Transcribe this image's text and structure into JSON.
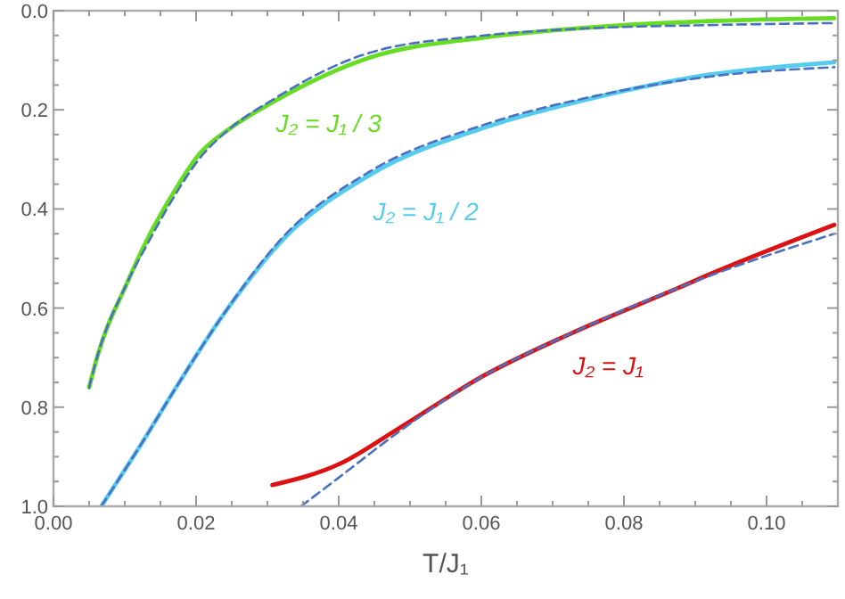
{
  "chart_data": {
    "type": "line",
    "xlabel": "T/J₁",
    "xlim": [
      0,
      0.11
    ],
    "ylim": [
      1,
      0
    ],
    "xticks": [
      {
        "value": 0,
        "label": "0.00"
      },
      {
        "value": 0.005,
        "label": null
      },
      {
        "value": 0.01,
        "label": null
      },
      {
        "value": 0.015,
        "label": null
      },
      {
        "value": 0.02,
        "label": "0.02"
      },
      {
        "value": 0.025,
        "label": null
      },
      {
        "value": 0.03,
        "label": null
      },
      {
        "value": 0.035,
        "label": null
      },
      {
        "value": 0.04,
        "label": "0.04"
      },
      {
        "value": 0.045,
        "label": null
      },
      {
        "value": 0.05,
        "label": null
      },
      {
        "value": 0.055,
        "label": null
      },
      {
        "value": 0.06,
        "label": "0.06"
      },
      {
        "value": 0.065,
        "label": null
      },
      {
        "value": 0.07,
        "label": null
      },
      {
        "value": 0.075,
        "label": null
      },
      {
        "value": 0.08,
        "label": "0.08"
      },
      {
        "value": 0.085,
        "label": null
      },
      {
        "value": 0.09,
        "label": null
      },
      {
        "value": 0.095,
        "label": null
      },
      {
        "value": 0.1,
        "label": "0.10"
      },
      {
        "value": 0.105,
        "label": null
      }
    ],
    "yticks": [
      {
        "value": 0,
        "label": "0.0"
      },
      {
        "value": 0.05,
        "label": null
      },
      {
        "value": 0.1,
        "label": null
      },
      {
        "value": 0.15,
        "label": null
      },
      {
        "value": 0.2,
        "label": "0.2"
      },
      {
        "value": 0.25,
        "label": null
      },
      {
        "value": 0.3,
        "label": null
      },
      {
        "value": 0.35,
        "label": null
      },
      {
        "value": 0.4,
        "label": "0.4"
      },
      {
        "value": 0.45,
        "label": null
      },
      {
        "value": 0.5,
        "label": null
      },
      {
        "value": 0.55,
        "label": null
      },
      {
        "value": 0.6,
        "label": "0.6"
      },
      {
        "value": 0.65,
        "label": null
      },
      {
        "value": 0.7,
        "label": null
      },
      {
        "value": 0.75,
        "label": null
      },
      {
        "value": 0.8,
        "label": "0.8"
      },
      {
        "value": 0.85,
        "label": null
      },
      {
        "value": 0.9,
        "label": null
      },
      {
        "value": 0.95,
        "label": null
      },
      {
        "value": 1,
        "label": "1.0"
      }
    ],
    "series": [
      {
        "name": "J₂ = J₁ / 3",
        "color": "#66dd22",
        "line_style": "solid",
        "x": [
          0.005,
          0.0061,
          0.0103,
          0.0132,
          0.0163,
          0.0204,
          0.025,
          0.0307,
          0.0443,
          0.0604,
          0.076,
          0.092,
          0.1095
        ],
        "values": [
          0.76,
          0.7,
          0.55,
          0.46,
          0.38,
          0.29,
          0.235,
          0.185,
          0.095,
          0.054,
          0.033,
          0.021,
          0.015
        ]
      },
      {
        "color": "#4a70c4",
        "line_style": "dashed",
        "x": [
          0.005,
          0.0061,
          0.0103,
          0.0132,
          0.0163,
          0.0204,
          0.025,
          0.0307,
          0.0443,
          0.0604,
          0.076,
          0.092,
          0.1095
        ],
        "values": [
          0.76,
          0.7,
          0.55,
          0.47,
          0.39,
          0.3,
          0.235,
          0.18,
          0.085,
          0.05,
          0.035,
          0.029,
          0.025
        ]
      },
      {
        "name": "J₂ = J₁ / 2",
        "color": "#55ccee",
        "line_style": "solid",
        "x": [
          0.0067,
          0.0125,
          0.0172,
          0.0235,
          0.0323,
          0.0443,
          0.0604,
          0.076,
          0.092,
          0.1095
        ],
        "values": [
          1,
          0.87,
          0.76,
          0.62,
          0.46,
          0.332,
          0.236,
          0.175,
          0.129,
          0.104
        ]
      },
      {
        "color": "#4a70c4",
        "line_style": "dashed",
        "x": [
          0.0067,
          0.0125,
          0.0172,
          0.0235,
          0.0323,
          0.0443,
          0.0604,
          0.076,
          0.092,
          0.1095
        ],
        "values": [
          1,
          0.87,
          0.76,
          0.62,
          0.455,
          0.325,
          0.23,
          0.172,
          0.133,
          0.114
        ]
      },
      {
        "name": "J₂ = J₁",
        "color": "#dd1111",
        "line_style": "solid",
        "x": [
          0.0307,
          0.0402,
          0.0484,
          0.0604,
          0.0723,
          0.088,
          0.092,
          0.1095
        ],
        "values": [
          0.957,
          0.914,
          0.843,
          0.736,
          0.653,
          0.557,
          0.532,
          0.432
        ]
      },
      {
        "color": "#4a70c4",
        "line_style": "dashed",
        "x": [
          0.0347,
          0.0402,
          0.0484,
          0.0604,
          0.0723,
          0.088,
          0.092,
          0.1095
        ],
        "values": [
          1,
          0.94,
          0.85,
          0.736,
          0.653,
          0.557,
          0.535,
          0.45
        ]
      }
    ]
  }
}
